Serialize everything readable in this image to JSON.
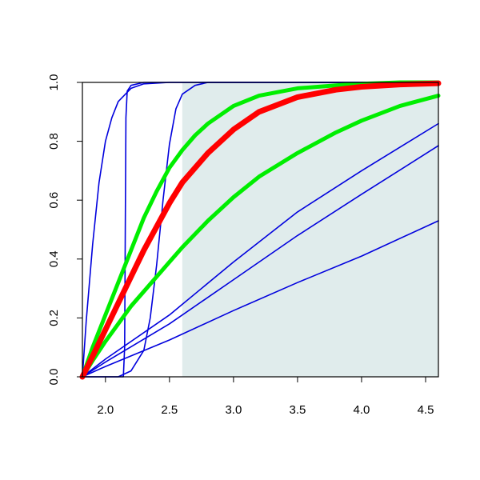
{
  "chart_data": {
    "type": "line",
    "title": "",
    "xlabel": "",
    "ylabel": "",
    "xlim": [
      1.82,
      4.6
    ],
    "ylim": [
      0.0,
      1.0
    ],
    "x_ticks": [
      "2.0",
      "2.5",
      "3.0",
      "3.5",
      "4.0",
      "4.5"
    ],
    "x_tick_values": [
      2.0,
      2.5,
      3.0,
      3.5,
      4.0,
      4.5
    ],
    "y_ticks": [
      "0.0",
      "0.2",
      "0.4",
      "0.6",
      "0.8",
      "1.0"
    ],
    "y_tick_values": [
      0.0,
      0.2,
      0.4,
      0.6,
      0.8,
      1.0
    ],
    "grid": false,
    "legend": "none",
    "shaded_region": {
      "x": [
        2.6,
        4.6
      ],
      "y": [
        0.0,
        1.0
      ],
      "color": "#e0ecec"
    },
    "colors": {
      "blue": "#0000dd",
      "red": "#ff0000",
      "green": "#00ee00",
      "axis": "#000000"
    },
    "series": [
      {
        "color": "#0000dd",
        "width": 1.6,
        "x": [
          1.82,
          1.85,
          1.9,
          1.95,
          2.0,
          2.05,
          2.1,
          2.2,
          2.3,
          2.5,
          4.6
        ],
        "y": [
          0.0,
          0.19,
          0.45,
          0.66,
          0.8,
          0.88,
          0.935,
          0.98,
          0.995,
          1.0,
          1.0
        ]
      },
      {
        "color": "#0000dd",
        "width": 1.6,
        "x": [
          1.82,
          2.14,
          2.15,
          2.155,
          2.16,
          2.17,
          2.2,
          2.3,
          4.6
        ],
        "y": [
          0.0,
          0.0,
          0.1,
          0.5,
          0.88,
          0.97,
          0.99,
          1.0,
          1.0
        ]
      },
      {
        "color": "#0000dd",
        "width": 1.6,
        "x": [
          1.82,
          2.1,
          2.2,
          2.3,
          2.35,
          2.4,
          2.45,
          2.5,
          2.55,
          2.6,
          2.7,
          2.8,
          4.6
        ],
        "y": [
          0.0,
          0.0,
          0.02,
          0.09,
          0.2,
          0.38,
          0.6,
          0.79,
          0.91,
          0.96,
          0.99,
          1.0,
          1.0
        ]
      },
      {
        "color": "#0000dd",
        "width": 1.6,
        "x": [
          1.82,
          2.0,
          2.5,
          3.0,
          3.5,
          4.0,
          4.6
        ],
        "y": [
          0.0,
          0.06,
          0.21,
          0.39,
          0.56,
          0.7,
          0.86
        ]
      },
      {
        "color": "#0000dd",
        "width": 1.6,
        "x": [
          1.82,
          2.0,
          2.5,
          3.0,
          3.5,
          4.0,
          4.6
        ],
        "y": [
          0.0,
          0.05,
          0.18,
          0.33,
          0.48,
          0.62,
          0.785
        ]
      },
      {
        "color": "#0000dd",
        "width": 1.6,
        "x": [
          1.82,
          2.0,
          2.5,
          3.0,
          3.5,
          4.0,
          4.6
        ],
        "y": [
          0.0,
          0.035,
          0.125,
          0.225,
          0.32,
          0.41,
          0.53
        ]
      },
      {
        "color": "#00ee00",
        "width": 5,
        "x": [
          1.82,
          1.9,
          2.0,
          2.1,
          2.2,
          2.3,
          2.4,
          2.5,
          2.6,
          2.7,
          2.8,
          3.0,
          3.2,
          3.5,
          3.8,
          4.0,
          4.3,
          4.6
        ],
        "y": [
          0.0,
          0.1,
          0.21,
          0.32,
          0.43,
          0.54,
          0.63,
          0.71,
          0.77,
          0.82,
          0.86,
          0.92,
          0.955,
          0.98,
          0.99,
          0.995,
          1.0,
          1.0
        ]
      },
      {
        "color": "#00ee00",
        "width": 5,
        "x": [
          1.82,
          1.9,
          2.0,
          2.1,
          2.2,
          2.3,
          2.4,
          2.5,
          2.6,
          2.8,
          3.0,
          3.2,
          3.5,
          3.8,
          4.0,
          4.3,
          4.6
        ],
        "y": [
          0.0,
          0.055,
          0.12,
          0.18,
          0.24,
          0.29,
          0.34,
          0.39,
          0.44,
          0.53,
          0.61,
          0.68,
          0.76,
          0.83,
          0.87,
          0.92,
          0.955
        ]
      },
      {
        "color": "#ff0000",
        "width": 7,
        "x": [
          1.82,
          1.9,
          2.0,
          2.1,
          2.2,
          2.3,
          2.4,
          2.5,
          2.6,
          2.7,
          2.8,
          3.0,
          3.2,
          3.5,
          3.8,
          4.0,
          4.3,
          4.6
        ],
        "y": [
          0.0,
          0.07,
          0.16,
          0.25,
          0.34,
          0.43,
          0.51,
          0.59,
          0.66,
          0.71,
          0.76,
          0.84,
          0.9,
          0.95,
          0.975,
          0.985,
          0.993,
          0.997
        ]
      }
    ]
  }
}
